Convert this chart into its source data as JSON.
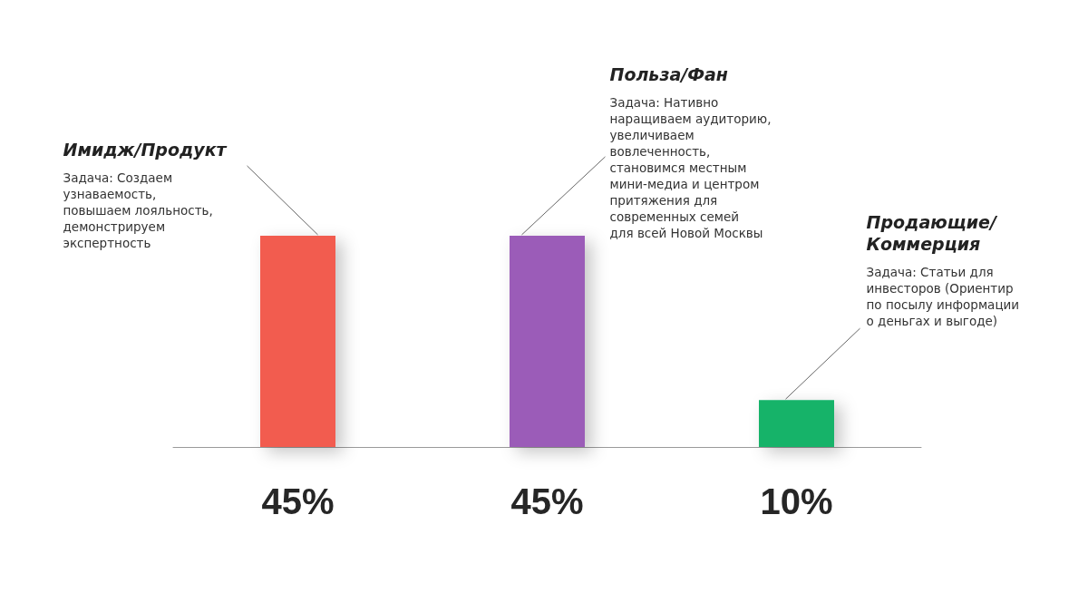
{
  "chart_data": {
    "type": "bar",
    "categories": [
      null,
      null,
      null
    ],
    "values": [
      45,
      45,
      10
    ],
    "colors": [
      "#f25c50",
      "#9b5cb8",
      "#14b369"
    ],
    "value_labels": [
      "45%",
      "45%",
      "10%"
    ],
    "annotations": [
      "Имидж/Продукт",
      "Задача: Создаем\nузнаваемость,\nповышаем лояльность,\nдемонстрируем\nэкспертность",
      "Польза/Фан",
      "Задача: Нативно\nнаращиваем аудиторию,\nувеличиваем\nвовлеченность,\nстановимся местным\nмини-медиа и центром\nпритяжения для\nсовременных семей\nдля всей Новой Москвы",
      "Продающие/\nКоммерция",
      "Задача: Статьи для\nинвесторов (Ориентир\nпо посылу информации\nо деньгах и выгоде)"
    ]
  }
}
